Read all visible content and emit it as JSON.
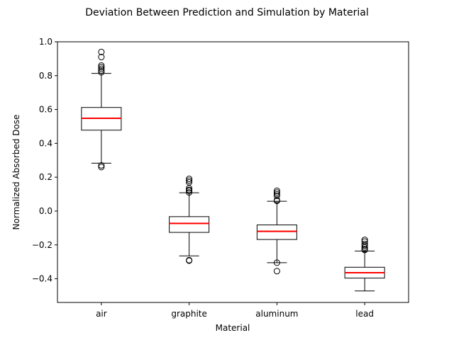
{
  "chart_data": {
    "type": "boxplot",
    "title": "Deviation Between Prediction and Simulation by Material",
    "xlabel": "Material",
    "ylabel": "Normalized Absorbed Dose",
    "ylim": [
      -0.54,
      1.0
    ],
    "yticks": [
      -0.4,
      -0.2,
      0.0,
      0.2,
      0.4,
      0.6,
      0.8,
      1.0
    ],
    "ytick_labels": [
      "−0.4",
      "−0.2",
      "0.0",
      "0.2",
      "0.4",
      "0.6",
      "0.8",
      "1.0"
    ],
    "grid": false,
    "categories": [
      "air",
      "graphite",
      "aluminum",
      "lead"
    ],
    "median_color": "#ff0000",
    "mean_color": "#ff7f0e",
    "boxes": [
      {
        "label": "air",
        "whisker_low": 0.283,
        "q1": 0.478,
        "median": 0.548,
        "mean": 0.546,
        "q3": 0.612,
        "whisker_high": 0.813,
        "outliers": [
          0.26,
          0.27,
          0.82,
          0.83,
          0.84,
          0.85,
          0.86,
          0.91,
          0.94
        ]
      },
      {
        "label": "graphite",
        "whisker_low": -0.265,
        "q1": -0.126,
        "median": -0.073,
        "mean": -0.075,
        "q3": -0.033,
        "whisker_high": 0.108,
        "outliers": [
          -0.29,
          -0.293,
          0.11,
          0.12,
          0.125,
          0.135,
          0.17,
          0.18,
          0.19
        ]
      },
      {
        "label": "aluminum",
        "whisker_low": -0.305,
        "q1": -0.168,
        "median": -0.12,
        "mean": -0.118,
        "q3": -0.082,
        "whisker_high": 0.058,
        "outliers": [
          -0.305,
          -0.355,
          0.06,
          0.065,
          0.09,
          0.1,
          0.11,
          0.12
        ]
      },
      {
        "label": "lead",
        "whisker_low": -0.472,
        "q1": -0.396,
        "median": -0.364,
        "mean": -0.362,
        "q3": -0.332,
        "whisker_high": -0.236,
        "outliers": [
          -0.23,
          -0.225,
          -0.215,
          -0.205,
          -0.195,
          -0.18,
          -0.17
        ]
      }
    ]
  }
}
